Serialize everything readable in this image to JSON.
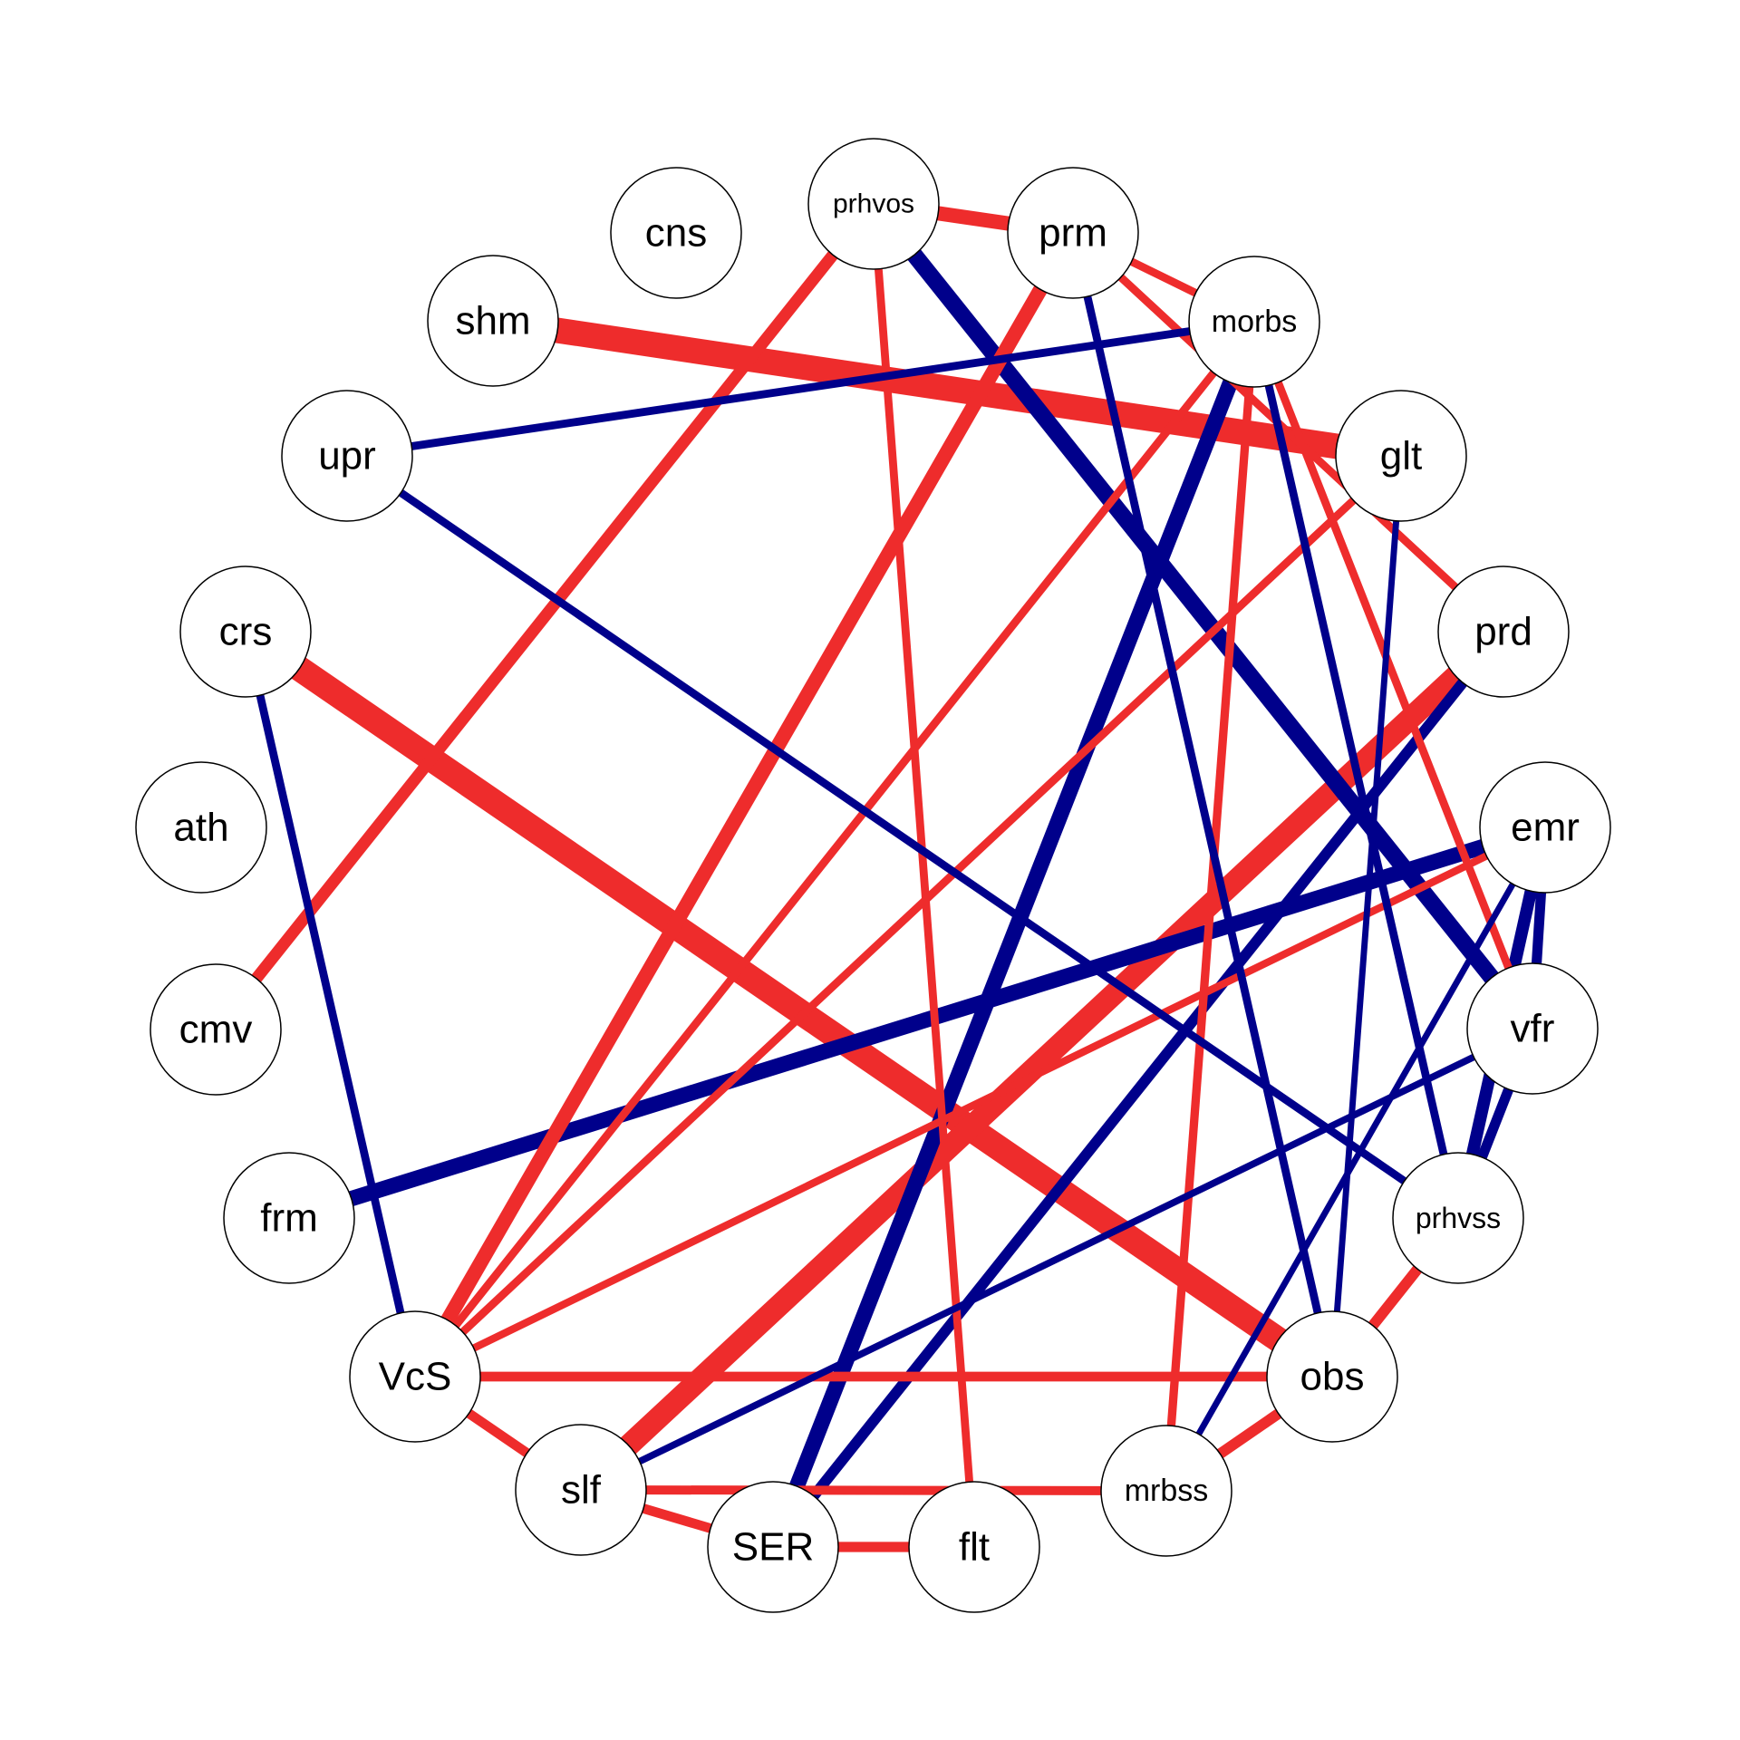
{
  "colors": {
    "positive": "#ee2c2c",
    "negative": "#00008b"
  },
  "chart_data": {
    "type": "network",
    "nodes": [
      {
        "id": "cns",
        "label": "cns"
      },
      {
        "id": "prhvos",
        "label": "prhvos"
      },
      {
        "id": "prm",
        "label": "prm"
      },
      {
        "id": "morbs",
        "label": "morbs"
      },
      {
        "id": "glt",
        "label": "glt"
      },
      {
        "id": "prd",
        "label": "prd"
      },
      {
        "id": "emr",
        "label": "emr"
      },
      {
        "id": "vfr",
        "label": "vfr"
      },
      {
        "id": "prhvss",
        "label": "prhvss"
      },
      {
        "id": "obs",
        "label": "obs"
      },
      {
        "id": "mrbss",
        "label": "mrbss"
      },
      {
        "id": "flt",
        "label": "flt"
      },
      {
        "id": "SER",
        "label": "SER"
      },
      {
        "id": "slf",
        "label": "slf"
      },
      {
        "id": "VcS",
        "label": "VcS"
      },
      {
        "id": "frm",
        "label": "frm"
      },
      {
        "id": "cmv",
        "label": "cmv"
      },
      {
        "id": "ath",
        "label": "ath"
      },
      {
        "id": "crs",
        "label": "crs"
      },
      {
        "id": "upr",
        "label": "upr"
      },
      {
        "id": "shm",
        "label": "shm"
      }
    ],
    "edges": [
      {
        "source": "shm",
        "target": "glt",
        "sign": "positive",
        "weight": 1.0
      },
      {
        "source": "crs",
        "target": "obs",
        "sign": "positive",
        "weight": 1.0
      },
      {
        "source": "prd",
        "target": "slf",
        "sign": "positive",
        "weight": 0.85
      },
      {
        "source": "prhvos",
        "target": "vfr",
        "sign": "negative",
        "weight": 0.6
      },
      {
        "source": "morbs",
        "target": "SER",
        "sign": "negative",
        "weight": 0.55
      },
      {
        "source": "emr",
        "target": "frm",
        "sign": "negative",
        "weight": 0.55
      },
      {
        "source": "prm",
        "target": "VcS",
        "sign": "positive",
        "weight": 0.5
      },
      {
        "source": "prhvos",
        "target": "prm",
        "sign": "positive",
        "weight": 0.5
      },
      {
        "source": "emr",
        "target": "prhvss",
        "sign": "negative",
        "weight": 0.4
      },
      {
        "source": "prhvos",
        "target": "cmv",
        "sign": "positive",
        "weight": 0.38
      },
      {
        "source": "prd",
        "target": "SER",
        "sign": "negative",
        "weight": 0.33
      },
      {
        "source": "obs",
        "target": "mrbss",
        "sign": "positive",
        "weight": 0.33
      },
      {
        "source": "prhvss",
        "target": "obs",
        "sign": "positive",
        "weight": 0.33
      },
      {
        "source": "SER",
        "target": "flt",
        "sign": "positive",
        "weight": 0.3
      },
      {
        "source": "VcS",
        "target": "obs",
        "sign": "positive",
        "weight": 0.28
      },
      {
        "source": "VcS",
        "target": "slf",
        "sign": "positive",
        "weight": 0.28
      },
      {
        "source": "slf",
        "target": "SER",
        "sign": "positive",
        "weight": 0.28
      },
      {
        "source": "slf",
        "target": "mrbss",
        "sign": "positive",
        "weight": 0.25
      },
      {
        "source": "morbs",
        "target": "mrbss",
        "sign": "positive",
        "weight": 0.22
      },
      {
        "source": "prhvos",
        "target": "flt",
        "sign": "positive",
        "weight": 0.2
      },
      {
        "source": "morbs",
        "target": "VcS",
        "sign": "positive",
        "weight": 0.2
      },
      {
        "source": "glt",
        "target": "VcS",
        "sign": "positive",
        "weight": 0.2
      },
      {
        "source": "emr",
        "target": "VcS",
        "sign": "positive",
        "weight": 0.18
      },
      {
        "source": "prm",
        "target": "prd",
        "sign": "positive",
        "weight": 0.2
      },
      {
        "source": "prm",
        "target": "morbs",
        "sign": "positive",
        "weight": 0.2
      },
      {
        "source": "morbs",
        "target": "vfr",
        "sign": "positive",
        "weight": 0.2
      },
      {
        "source": "upr",
        "target": "morbs",
        "sign": "negative",
        "weight": 0.2
      },
      {
        "source": "upr",
        "target": "prhvss",
        "sign": "negative",
        "weight": 0.2
      },
      {
        "source": "crs",
        "target": "VcS",
        "sign": "negative",
        "weight": 0.2
      },
      {
        "source": "prm",
        "target": "obs",
        "sign": "negative",
        "weight": 0.2
      },
      {
        "source": "morbs",
        "target": "prhvss",
        "sign": "negative",
        "weight": 0.2
      },
      {
        "source": "vfr",
        "target": "slf",
        "sign": "negative",
        "weight": 0.15
      },
      {
        "source": "glt",
        "target": "obs",
        "sign": "negative",
        "weight": 0.12
      },
      {
        "source": "emr",
        "target": "mrbss",
        "sign": "negative",
        "weight": 0.12
      },
      {
        "source": "emr",
        "target": "vfr",
        "sign": "negative",
        "weight": 0.3
      },
      {
        "source": "vfr",
        "target": "prhvss",
        "sign": "negative",
        "weight": 0.3
      }
    ]
  }
}
